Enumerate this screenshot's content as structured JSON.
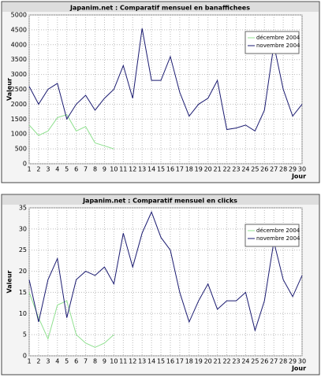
{
  "chart_data": [
    {
      "type": "line",
      "title": "Japanim.net : Comparatif mensuel en banaffichees",
      "ylabel": "Valeur",
      "xlabel": "Jour",
      "x": [
        1,
        2,
        3,
        4,
        5,
        6,
        7,
        8,
        9,
        10,
        11,
        12,
        13,
        14,
        15,
        16,
        17,
        18,
        19,
        20,
        21,
        22,
        23,
        24,
        25,
        26,
        27,
        28,
        29,
        30
      ],
      "xlim": [
        1,
        30
      ],
      "xticks": [
        1,
        2,
        3,
        4,
        5,
        6,
        7,
        8,
        9,
        10,
        11,
        12,
        13,
        14,
        15,
        16,
        17,
        18,
        19,
        20,
        21,
        22,
        23,
        24,
        25,
        26,
        27,
        28,
        29,
        30
      ],
      "ylim": [
        0,
        5000
      ],
      "yticks": [
        0,
        500,
        1000,
        1500,
        2000,
        2500,
        3000,
        3500,
        4000,
        4500,
        5000
      ],
      "grid": true,
      "legend": "upper right",
      "series": [
        {
          "name": "décembre 2004",
          "color": "#90e090",
          "values": [
            1300,
            950,
            1100,
            1550,
            1650,
            1100,
            1250,
            700,
            600,
            500,
            null,
            null,
            null,
            null,
            null,
            null,
            null,
            null,
            null,
            null,
            null,
            null,
            null,
            null,
            null,
            null,
            null,
            null,
            null,
            null
          ]
        },
        {
          "name": "novembre 2004",
          "color": "#1a1a70",
          "values": [
            2600,
            2000,
            2500,
            2700,
            1500,
            2000,
            2300,
            1800,
            2200,
            2500,
            3300,
            2200,
            4550,
            2800,
            2800,
            3600,
            2400,
            1600,
            2000,
            2200,
            2800,
            1150,
            1200,
            1300,
            1100,
            1800,
            4000,
            2500,
            1600,
            2000
          ]
        }
      ]
    },
    {
      "type": "line",
      "title": "Japanim.net : Comparatif mensuel en clicks",
      "ylabel": "Valeur",
      "xlabel": "Jour",
      "x": [
        1,
        2,
        3,
        4,
        5,
        6,
        7,
        8,
        9,
        10,
        11,
        12,
        13,
        14,
        15,
        16,
        17,
        18,
        19,
        20,
        21,
        22,
        23,
        24,
        25,
        26,
        27,
        28,
        29,
        30
      ],
      "xlim": [
        1,
        30
      ],
      "xticks": [
        1,
        2,
        3,
        4,
        5,
        6,
        7,
        8,
        9,
        10,
        11,
        12,
        13,
        14,
        15,
        16,
        17,
        18,
        19,
        20,
        21,
        22,
        23,
        24,
        25,
        26,
        27,
        28,
        29,
        30
      ],
      "ylim": [
        0,
        35
      ],
      "yticks": [
        0,
        5,
        10,
        15,
        20,
        25,
        30,
        35
      ],
      "grid": true,
      "legend": "upper right",
      "series": [
        {
          "name": "décembre 2004",
          "color": "#90e090",
          "values": [
            15,
            9,
            4,
            12,
            13,
            5,
            3,
            2,
            3,
            5,
            null,
            null,
            null,
            null,
            null,
            null,
            null,
            null,
            null,
            null,
            null,
            null,
            null,
            null,
            null,
            null,
            null,
            null,
            null,
            null
          ]
        },
        {
          "name": "novembre 2004",
          "color": "#1a1a70",
          "values": [
            18,
            8,
            18,
            23,
            9,
            18,
            20,
            19,
            21,
            17,
            29,
            21,
            29,
            34,
            28,
            25,
            15,
            8,
            13,
            17,
            11,
            13,
            13,
            15,
            6,
            13,
            27,
            18,
            14,
            19
          ]
        }
      ]
    }
  ]
}
